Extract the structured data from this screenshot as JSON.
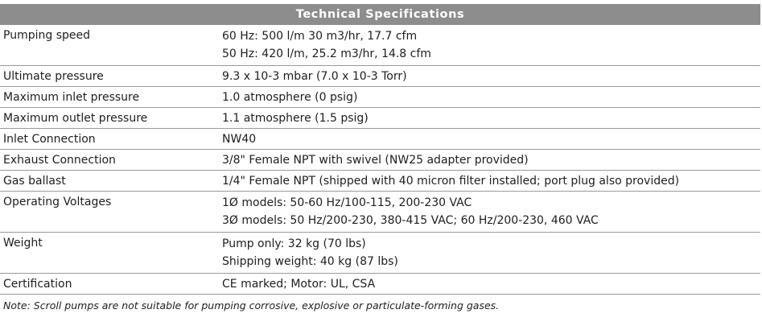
{
  "table": {
    "title": "Technical Specifications",
    "rows": [
      {
        "label": "Pumping speed",
        "values": [
          "60 Hz: 500 l/m 30 m3/hr, 17.7 cfm",
          "50 Hz: 420 l/m, 25.2 m3/hr, 14.8 cfm"
        ]
      },
      {
        "label": "Ultimate pressure",
        "values": [
          "9.3 x 10-3 mbar (7.0 x 10-3 Torr)"
        ]
      },
      {
        "label": "Maximum inlet pressure",
        "values": [
          "1.0 atmosphere (0 psig)"
        ]
      },
      {
        "label": "Maximum outlet pressure",
        "values": [
          "1.1 atmosphere (1.5 psig)"
        ]
      },
      {
        "label": "Inlet Connection",
        "values": [
          "NW40"
        ]
      },
      {
        "label": "Exhaust Connection",
        "values": [
          "3/8\" Female NPT with swivel (NW25 adapter provided)"
        ]
      },
      {
        "label": "Gas ballast",
        "values": [
          "1/4\" Female NPT (shipped with 40 micron filter installed; port plug also provided)"
        ]
      },
      {
        "label": "Operating Voltages",
        "values": [
          "1Ø models: 50-60 Hz/100-115, 200-230 VAC",
          "3Ø models: 50 Hz/200-230, 380-415 VAC; 60 Hz/200-230, 460 VAC"
        ]
      },
      {
        "label": "Weight",
        "values": [
          "Pump only: 32 kg (70 lbs)",
          "Shipping weight: 40 kg (87 lbs)"
        ]
      },
      {
        "label": "Certification",
        "values": [
          "CE marked; Motor: UL, CSA"
        ]
      }
    ]
  },
  "note": {
    "label": "Note:",
    "text": "Scroll pumps are not suitable for pumping corrosive, explosive or particulate-forming gases."
  }
}
